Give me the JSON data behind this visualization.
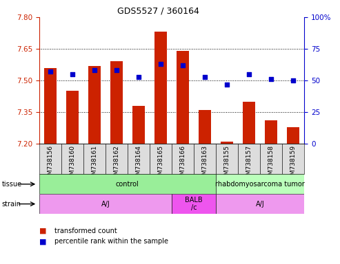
{
  "title": "GDS5527 / 360164",
  "samples": [
    "GSM738156",
    "GSM738160",
    "GSM738161",
    "GSM738162",
    "GSM738164",
    "GSM738165",
    "GSM738166",
    "GSM738163",
    "GSM738155",
    "GSM738157",
    "GSM738158",
    "GSM738159"
  ],
  "bar_values": [
    7.56,
    7.45,
    7.57,
    7.59,
    7.38,
    7.73,
    7.64,
    7.36,
    7.21,
    7.4,
    7.31,
    7.28
  ],
  "dot_values": [
    57,
    55,
    58,
    58,
    53,
    63,
    62,
    53,
    47,
    55,
    51,
    50
  ],
  "ylim": [
    7.2,
    7.8
  ],
  "y2lim": [
    0,
    100
  ],
  "yticks": [
    7.2,
    7.35,
    7.5,
    7.65,
    7.8
  ],
  "y2ticks": [
    0,
    25,
    50,
    75,
    100
  ],
  "y2ticklabels": [
    "0",
    "25",
    "50",
    "75",
    "100%"
  ],
  "bar_color": "#cc2200",
  "dot_color": "#0000cc",
  "bar_bottom": 7.2,
  "tissue_groups": [
    {
      "label": "control",
      "start": 0,
      "end": 8,
      "color": "#99ee99"
    },
    {
      "label": "rhabdomyosarcoma tumor",
      "start": 8,
      "end": 12,
      "color": "#bbffbb"
    }
  ],
  "strain_groups": [
    {
      "label": "A/J",
      "start": 0,
      "end": 6,
      "color": "#ee99ee"
    },
    {
      "label": "BALB\n/c",
      "start": 6,
      "end": 8,
      "color": "#ee55ee"
    },
    {
      "label": "A/J",
      "start": 8,
      "end": 12,
      "color": "#ee99ee"
    }
  ],
  "legend_items": [
    {
      "label": "transformed count",
      "color": "#cc2200"
    },
    {
      "label": "percentile rank within the sample",
      "color": "#0000cc"
    }
  ],
  "grid_yticks": [
    7.35,
    7.5,
    7.65
  ],
  "tick_color_left": "#cc2200",
  "tick_color_right": "#0000cc"
}
